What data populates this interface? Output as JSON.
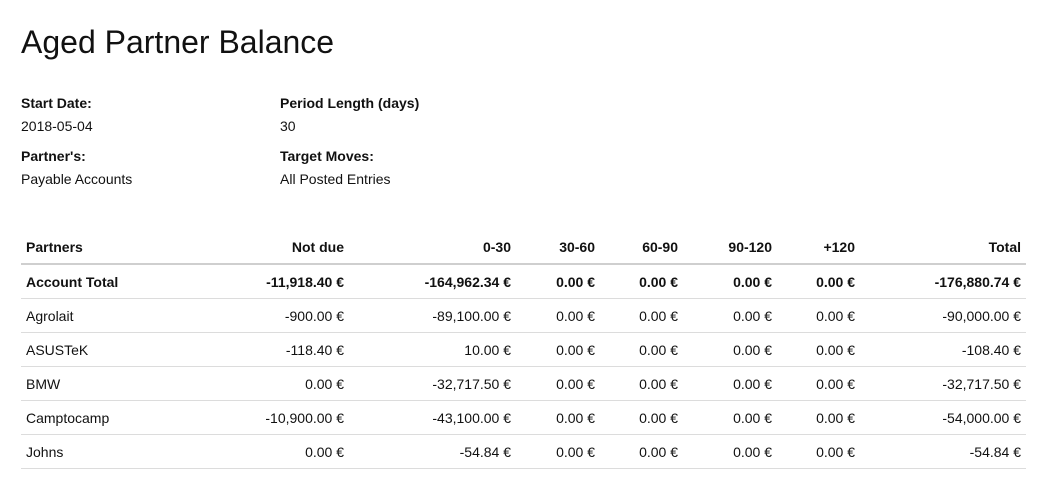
{
  "report": {
    "title": "Aged Partner Balance"
  },
  "info": {
    "start_date_label": "Start Date:",
    "start_date_value": "2018-05-04",
    "period_length_label": "Period Length (days)",
    "period_length_value": "30",
    "partners_label": "Partner's:",
    "partners_value": "Payable Accounts",
    "target_moves_label": "Target Moves:",
    "target_moves_value": "All Posted Entries"
  },
  "table": {
    "headers": [
      "Partners",
      "Not due",
      "0-30",
      "30-60",
      "60-90",
      "90-120",
      "+120",
      "Total"
    ],
    "total_row": [
      "Account Total",
      "-11,918.40 €",
      "-164,962.34 €",
      "0.00 €",
      "0.00 €",
      "0.00 €",
      "0.00 €",
      "-176,880.74 €"
    ],
    "rows": [
      [
        "Agrolait",
        "-900.00 €",
        "-89,100.00 €",
        "0.00 €",
        "0.00 €",
        "0.00 €",
        "0.00 €",
        "-90,000.00 €"
      ],
      [
        "ASUSTeK",
        "-118.40 €",
        "10.00 €",
        "0.00 €",
        "0.00 €",
        "0.00 €",
        "0.00 €",
        "-108.40 €"
      ],
      [
        "BMW",
        "0.00 €",
        "-32,717.50 €",
        "0.00 €",
        "0.00 €",
        "0.00 €",
        "0.00 €",
        "-32,717.50 €"
      ],
      [
        "Camptocamp",
        "-10,900.00 €",
        "-43,100.00 €",
        "0.00 €",
        "0.00 €",
        "0.00 €",
        "0.00 €",
        "-54,000.00 €"
      ],
      [
        "Johns",
        "0.00 €",
        "-54.84 €",
        "0.00 €",
        "0.00 €",
        "0.00 €",
        "0.00 €",
        "-54.84 €"
      ]
    ]
  }
}
